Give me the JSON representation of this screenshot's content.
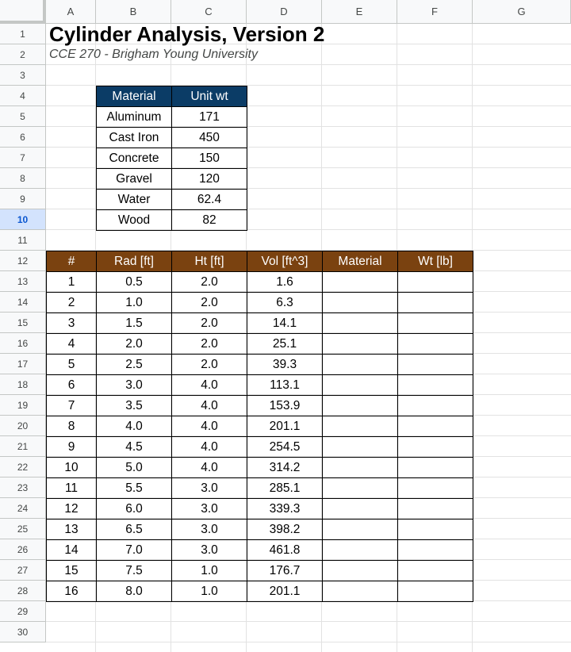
{
  "columns": [
    "A",
    "B",
    "C",
    "D",
    "E",
    "F",
    "G"
  ],
  "rows": [
    "1",
    "2",
    "3",
    "4",
    "5",
    "6",
    "7",
    "8",
    "9",
    "10",
    "11",
    "12",
    "13",
    "14",
    "15",
    "16",
    "17",
    "18",
    "19",
    "20",
    "21",
    "22",
    "23",
    "24",
    "25",
    "26",
    "27",
    "28",
    "29",
    "30"
  ],
  "selected_row": "10",
  "title": "Cylinder Analysis, Version 2",
  "subtitle": "CCE 270 - Brigham Young University",
  "materials_table": {
    "headers": [
      "Material",
      "Unit wt"
    ],
    "rows": [
      [
        "Aluminum",
        "171"
      ],
      [
        "Cast Iron",
        "450"
      ],
      [
        "Concrete",
        "150"
      ],
      [
        "Gravel",
        "120"
      ],
      [
        "Water",
        "62.4"
      ],
      [
        "Wood",
        "82"
      ]
    ]
  },
  "cylinder_table": {
    "headers": [
      "#",
      "Rad [ft]",
      "Ht [ft]",
      "Vol [ft^3]",
      "Material",
      "Wt [lb]"
    ],
    "rows": [
      [
        "1",
        "0.5",
        "2.0",
        "1.6",
        "",
        ""
      ],
      [
        "2",
        "1.0",
        "2.0",
        "6.3",
        "",
        ""
      ],
      [
        "3",
        "1.5",
        "2.0",
        "14.1",
        "",
        ""
      ],
      [
        "4",
        "2.0",
        "2.0",
        "25.1",
        "",
        ""
      ],
      [
        "5",
        "2.5",
        "2.0",
        "39.3",
        "",
        ""
      ],
      [
        "6",
        "3.0",
        "4.0",
        "113.1",
        "",
        ""
      ],
      [
        "7",
        "3.5",
        "4.0",
        "153.9",
        "",
        ""
      ],
      [
        "8",
        "4.0",
        "4.0",
        "201.1",
        "",
        ""
      ],
      [
        "9",
        "4.5",
        "4.0",
        "254.5",
        "",
        ""
      ],
      [
        "10",
        "5.0",
        "4.0",
        "314.2",
        "",
        ""
      ],
      [
        "11",
        "5.5",
        "3.0",
        "285.1",
        "",
        ""
      ],
      [
        "12",
        "6.0",
        "3.0",
        "339.3",
        "",
        ""
      ],
      [
        "13",
        "6.5",
        "3.0",
        "398.2",
        "",
        ""
      ],
      [
        "14",
        "7.0",
        "3.0",
        "461.8",
        "",
        ""
      ],
      [
        "15",
        "7.5",
        "1.0",
        "176.7",
        "",
        ""
      ],
      [
        "16",
        "8.0",
        "1.0",
        "201.1",
        "",
        ""
      ]
    ]
  },
  "colors": {
    "materials_header": "#0b3c66",
    "cylinder_header": "#7a4210",
    "selection": "#d3e3fd"
  }
}
